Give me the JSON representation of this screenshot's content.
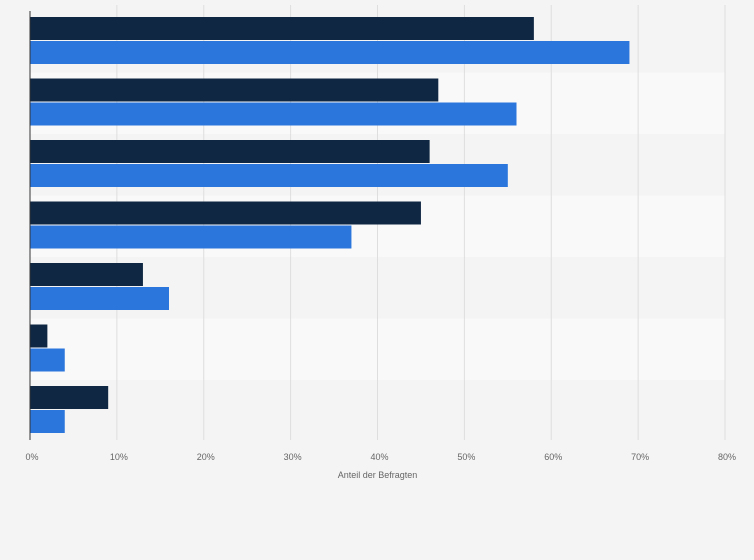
{
  "chart_data": {
    "type": "bar",
    "orientation": "horizontal",
    "categories": [
      "",
      "",
      "",
      "",
      "",
      "",
      ""
    ],
    "series": [
      {
        "values": [
          58,
          47,
          46,
          45,
          13,
          2,
          9
        ]
      },
      {
        "values": [
          69,
          56,
          55,
          37,
          16,
          4,
          4
        ]
      }
    ],
    "xlabel": "Anteil der Befragten",
    "xlim": [
      0,
      80
    ],
    "xticks": [
      "0%",
      "10%",
      "20%",
      "30%",
      "40%",
      "50%",
      "60%",
      "70%",
      "80%"
    ],
    "grid": true,
    "colors": {
      "series_1": "#0f2742",
      "series_2": "#2a76dd",
      "band_dark": "#f4f4f4",
      "band_light": "#f9f9f9",
      "gridline": "#dedede",
      "axis": "#333333"
    }
  }
}
